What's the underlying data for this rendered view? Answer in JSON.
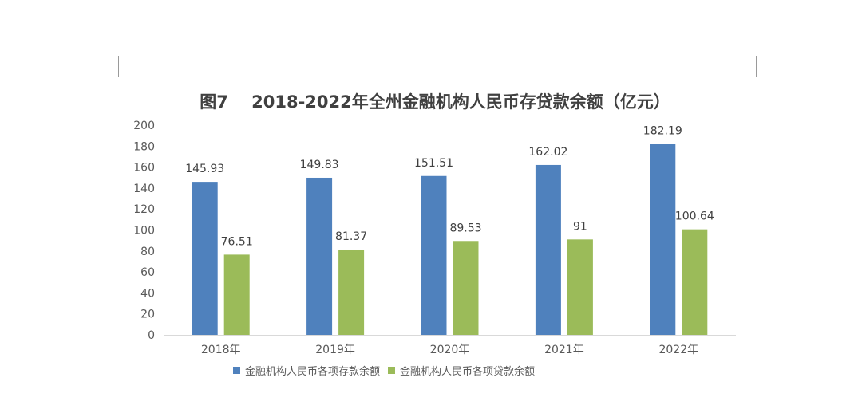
{
  "chart_data": {
    "type": "bar",
    "title": "图7    2018-2022年全州金融机构人民币存贷款余额（亿元）",
    "categories": [
      "2018年",
      "2019年",
      "2020年",
      "2021年",
      "2022年"
    ],
    "series": [
      {
        "name": "金融机构人民币各项存款余额",
        "color": "#4f81bd",
        "values": [
          145.93,
          149.83,
          151.51,
          162.02,
          182.19
        ],
        "labels": [
          "145.93",
          "149.83",
          "151.51",
          "162.02",
          "182.19"
        ]
      },
      {
        "name": "金融机构人民币各项贷款余额",
        "color": "#9bbb59",
        "values": [
          76.51,
          81.37,
          89.53,
          91,
          100.64
        ],
        "labels": [
          "76.51",
          "81.37",
          "89.53",
          "91",
          "100.64"
        ]
      }
    ],
    "yticks": [
      "0",
      "20",
      "40",
      "60",
      "80",
      "100",
      "120",
      "140",
      "160",
      "180",
      "200"
    ],
    "ylim": [
      0,
      200
    ],
    "grid": false,
    "legend_position": "bottom"
  }
}
